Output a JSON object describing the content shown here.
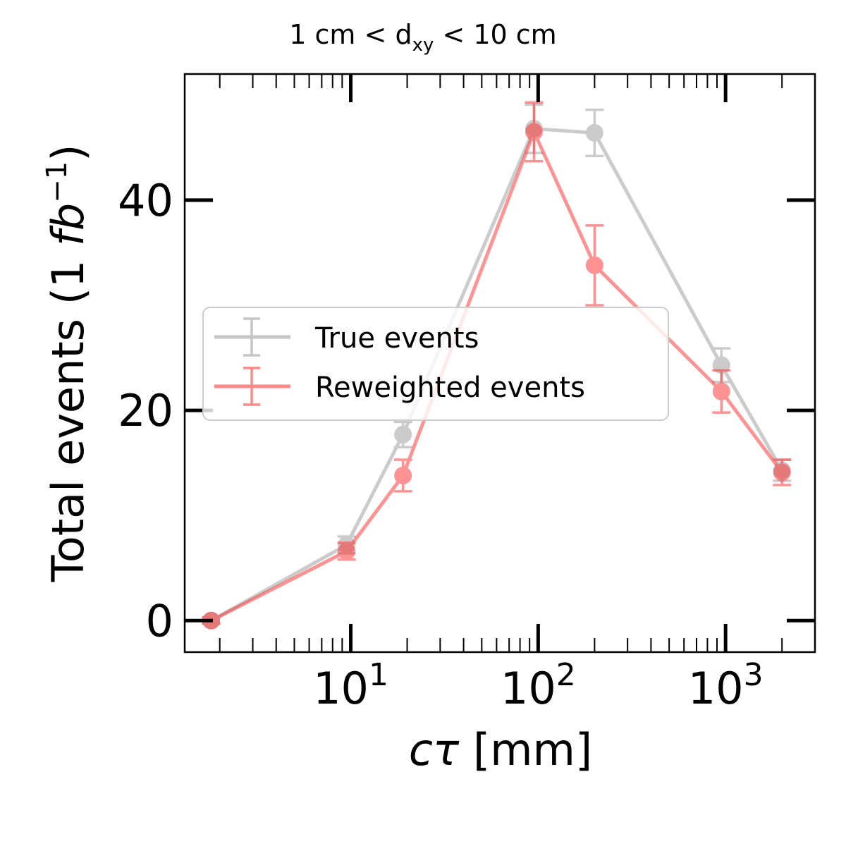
{
  "chart_data": {
    "type": "line",
    "title_parts": {
      "lead": "1 cm < d",
      "sub": "xy",
      "tail": " < 10 cm"
    },
    "xlabel": {
      "lead": "cτ",
      "tail": " [mm]"
    },
    "ylabel": {
      "lead": "Total events (1 ",
      "italic": "fb",
      "sup": "−1",
      "tail": ")"
    },
    "x_scale": "log",
    "xlim": [
      1.3,
      3000
    ],
    "ylim": [
      -3,
      52
    ],
    "y_ticks": [
      0,
      20,
      40
    ],
    "y_tick_labels": [
      "0",
      "20",
      "40"
    ],
    "x_ticks": [
      10,
      100,
      1000
    ],
    "x_tick_labels": [
      {
        "base": "10",
        "exp": "1"
      },
      {
        "base": "10",
        "exp": "2"
      },
      {
        "base": "10",
        "exp": "3"
      }
    ],
    "grid": false,
    "legend_position": "center-left",
    "series": [
      {
        "name": "True events",
        "color": "#999999",
        "x": [
          1.8,
          9.5,
          19,
          95,
          200,
          950,
          2000
        ],
        "y": [
          0.0,
          7.2,
          17.7,
          46.8,
          46.4,
          24.3,
          14.3
        ],
        "err": [
          0.3,
          0.8,
          1.2,
          2.3,
          2.2,
          1.6,
          1.0
        ]
      },
      {
        "name": "Reweighted events",
        "color": "#ff2a2a",
        "x": [
          1.8,
          9.5,
          19,
          95,
          200,
          950,
          2000
        ],
        "y": [
          0.0,
          6.6,
          13.8,
          46.5,
          33.8,
          21.8,
          14.1
        ],
        "err": [
          0.3,
          0.8,
          1.5,
          2.8,
          3.8,
          2.0,
          1.2
        ]
      }
    ]
  }
}
